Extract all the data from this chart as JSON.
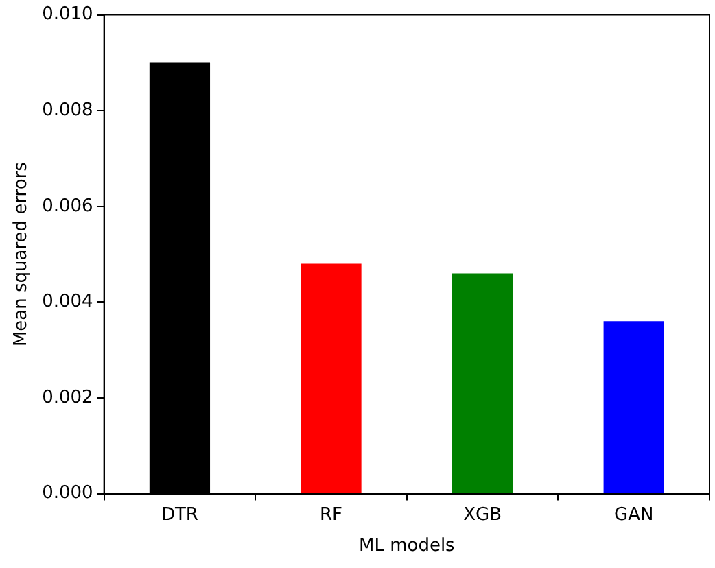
{
  "chart_data": {
    "type": "bar",
    "xlabel": "ML models",
    "ylabel": "Mean squared errors",
    "categories": [
      "DTR",
      "RF",
      "XGB",
      "GAN"
    ],
    "values": [
      0.009,
      0.0048,
      0.0046,
      0.0036
    ],
    "colors": [
      "#000000",
      "#ff0000",
      "#008000",
      "#0000ff"
    ],
    "ylim": [
      0,
      0.01
    ],
    "yticks": [
      {
        "value": 0,
        "label": "0.000"
      },
      {
        "value": 0.002,
        "label": "0.002"
      },
      {
        "value": 0.004,
        "label": "0.004"
      },
      {
        "value": 0.006,
        "label": "0.006"
      },
      {
        "value": 0.008,
        "label": "0.008"
      },
      {
        "value": 0.01,
        "label": "0.010"
      }
    ],
    "grid": false,
    "legend": false
  }
}
